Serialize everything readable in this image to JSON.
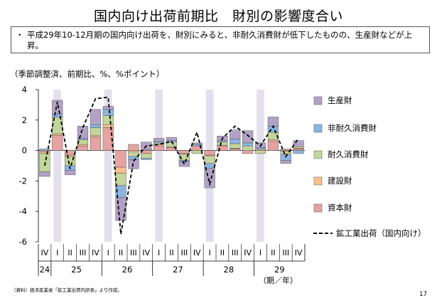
{
  "slide": {
    "title": "国内向け出荷前期比　財別の影響度合い",
    "bullet": "・",
    "note": "平成29年10-12月期の国内向け出荷を、財別にみると、非耐久消費財が低下したものの、生産財などが上昇。",
    "unit": "（季節調整済、前期比、%、%ポイント）",
    "source": "（資料）経済産業省「鉱工業出荷内訳表」より作成。",
    "page_number": "17",
    "axis_period_label": "（期／年）"
  },
  "colors": {
    "production": "#b3a2c7",
    "nondurable": "#8db4e2",
    "durable": "#c3d69b",
    "construction": "#fac090",
    "capital": "#e6a3a1",
    "shade": "#e4dfec",
    "line": "#000000"
  },
  "chart_data": {
    "type": "bar",
    "subtype": "stacked bar with line",
    "ylim": [
      -6,
      4
    ],
    "yticks": [
      4,
      2,
      0,
      -2,
      -4,
      -6
    ],
    "categories": [
      "IV",
      "I",
      "II",
      "III",
      "IV",
      "I",
      "II",
      "III",
      "IV",
      "I",
      "II",
      "III",
      "IV",
      "I",
      "II",
      "III",
      "IV",
      "I",
      "II",
      "III",
      "IV"
    ],
    "years": [
      {
        "label": "24",
        "start": 0,
        "end": 0
      },
      {
        "label": "25",
        "start": 1,
        "end": 4
      },
      {
        "label": "26",
        "start": 5,
        "end": 8
      },
      {
        "label": "27",
        "start": 9,
        "end": 12
      },
      {
        "label": "28",
        "start": 13,
        "end": 16
      },
      {
        "label": "29",
        "start": 17,
        "end": 20
      }
    ],
    "shaded_categories": [
      1,
      5,
      9,
      13,
      17
    ],
    "series": [
      {
        "key": "capital",
        "name": "資本財",
        "values": [
          -0.1,
          1.0,
          -0.3,
          0.3,
          0.9,
          1.5,
          -1.1,
          0.4,
          -0.2,
          0.3,
          0.2,
          -0.2,
          0.3,
          -0.3,
          0.3,
          0.1,
          -0.2,
          0.1,
          0.6,
          0.1,
          0.1
        ]
      },
      {
        "key": "construction",
        "name": "建設財",
        "values": [
          -0.1,
          0.1,
          -0.1,
          0.1,
          0.1,
          0.2,
          -0.4,
          -0.1,
          0.05,
          0.1,
          0.05,
          -0.05,
          0.0,
          -0.05,
          0.05,
          0.05,
          0.0,
          0.0,
          0.1,
          -0.05,
          0.05
        ]
      },
      {
        "key": "durable",
        "name": "耐久消費財",
        "values": [
          -1.2,
          1.1,
          -0.6,
          0.3,
          0.5,
          0.6,
          -0.8,
          -0.3,
          -0.3,
          0.1,
          0.3,
          -0.4,
          -0.2,
          -0.5,
          0.2,
          0.3,
          0.3,
          -0.2,
          0.5,
          -0.2,
          0.1
        ]
      },
      {
        "key": "nondurable",
        "name": "非耐久消費財",
        "values": [
          0.1,
          0.2,
          -0.3,
          0.1,
          0.2,
          0.4,
          -0.8,
          -0.2,
          -0.1,
          0.1,
          0.1,
          -0.1,
          0.1,
          -0.3,
          0.1,
          0.3,
          0.2,
          0.1,
          0.4,
          -0.4,
          -0.2
        ]
      },
      {
        "key": "production",
        "name": "生産財",
        "values": [
          -0.3,
          0.9,
          -0.3,
          0.8,
          1.0,
          0.2,
          -1.5,
          -0.6,
          0.5,
          0.2,
          0.2,
          -0.3,
          0.1,
          -1.3,
          0.3,
          0.6,
          0.8,
          0.3,
          0.6,
          -0.2,
          0.4
        ]
      },
      {
        "key": "total",
        "name": "鉱工業出荷（国内向け）",
        "type": "line",
        "values": [
          -1.0,
          3.2,
          -1.2,
          1.5,
          3.4,
          3.5,
          -5.5,
          -0.7,
          0.3,
          0.4,
          0.6,
          -0.9,
          1.2,
          -2.2,
          0.8,
          1.6,
          1.0,
          0.3,
          1.6,
          -0.4,
          0.8
        ]
      }
    ],
    "legend_position": "right"
  }
}
